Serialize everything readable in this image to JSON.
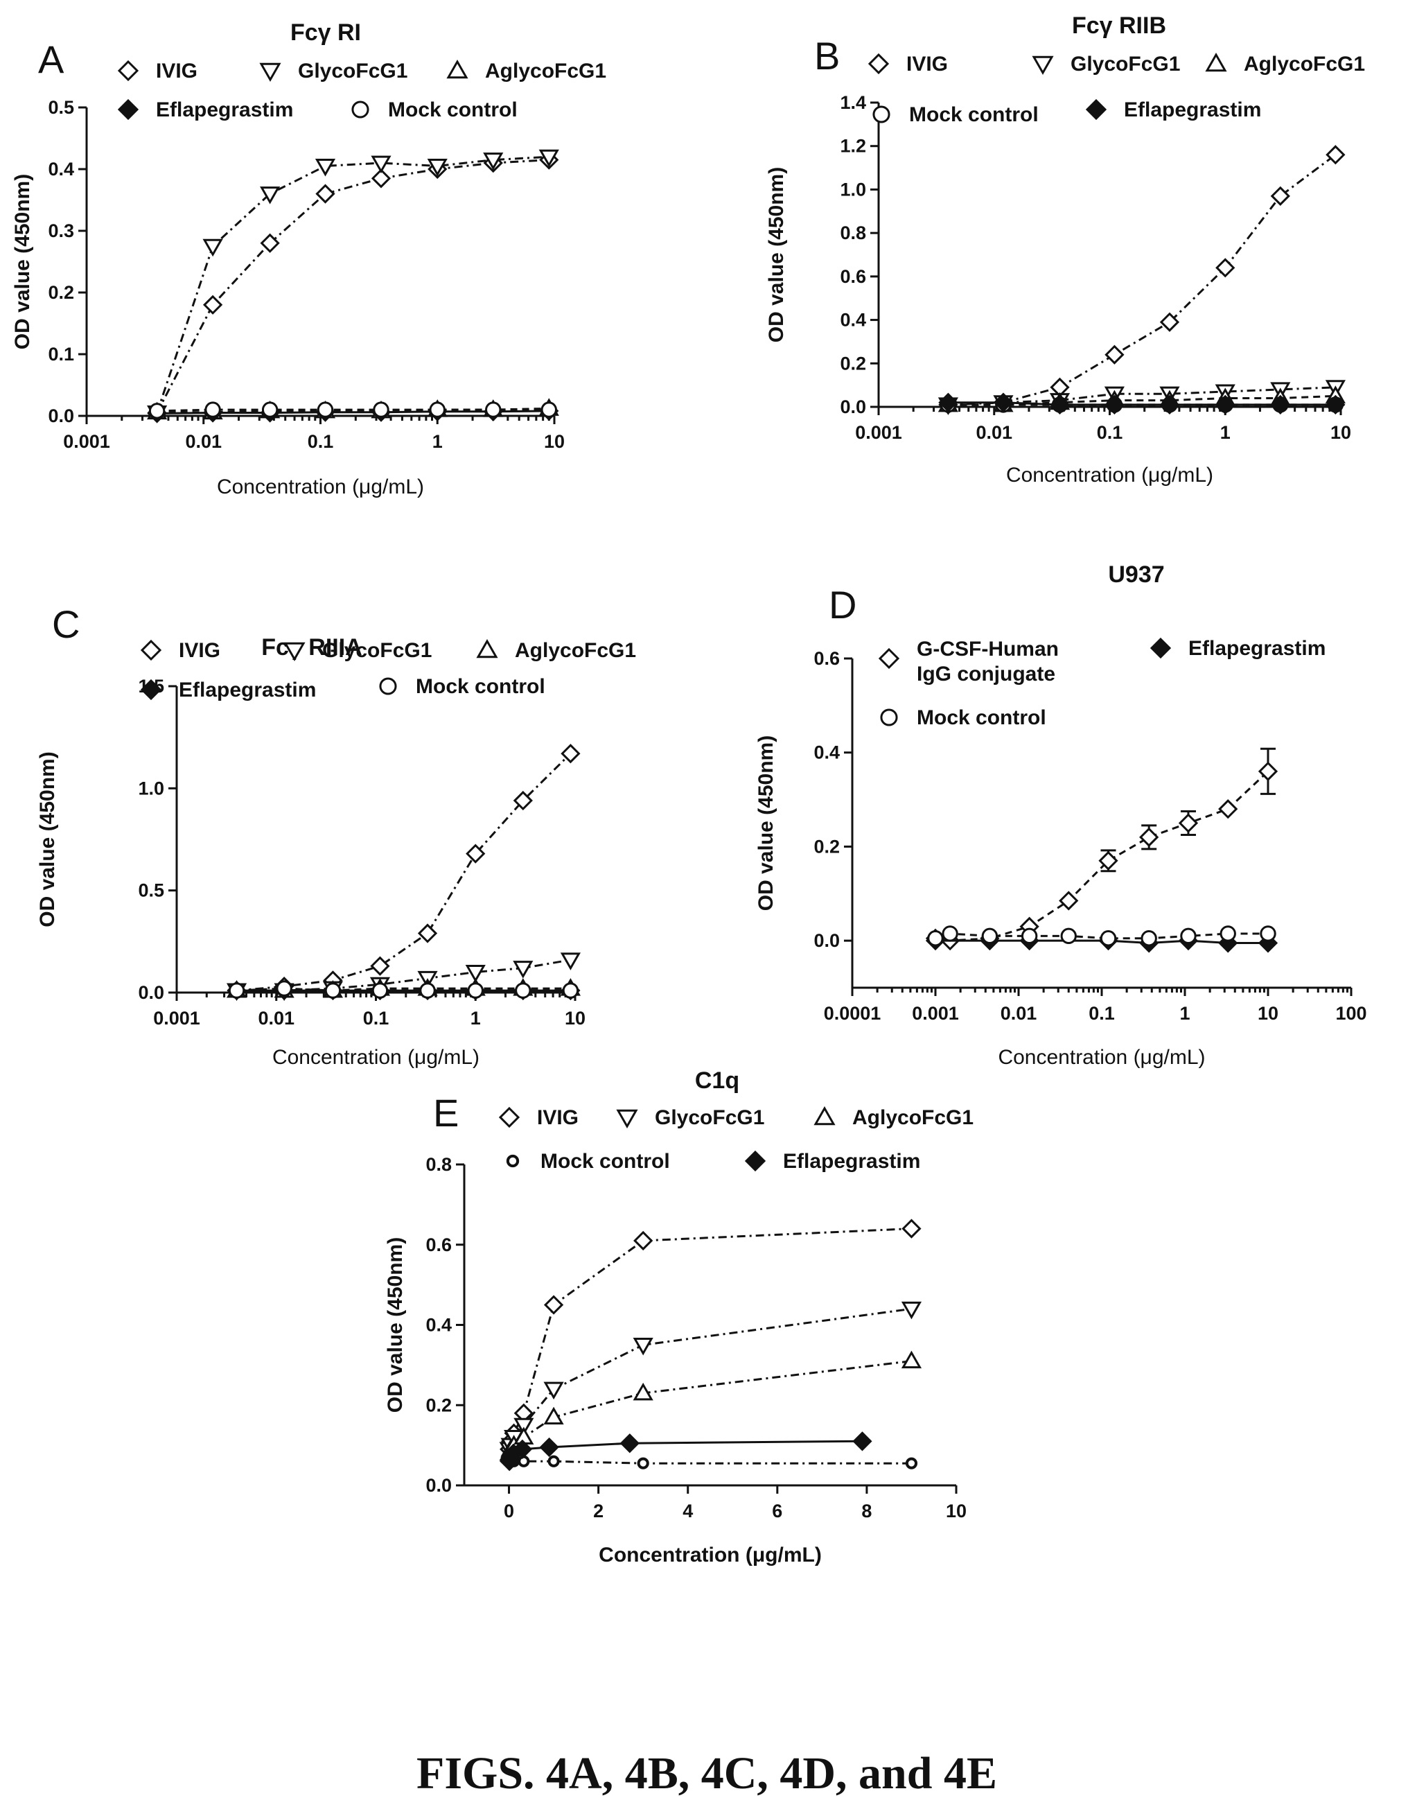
{
  "caption": "FIGS. 4A, 4B, 4C, 4D, and 4E",
  "chart_data": [
    {
      "panel": "A",
      "title": "Fcγ RI",
      "type": "line",
      "xscale": "log",
      "xlim": [
        0.001,
        10
      ],
      "ylim": [
        0,
        0.5
      ],
      "xticks": [
        0.001,
        0.01,
        0.1,
        1,
        10
      ],
      "xticklabels": [
        "0.001",
        "0.01",
        "0.1",
        "1",
        "10"
      ],
      "yticks": [
        0,
        0.1,
        0.2,
        0.3,
        0.4,
        0.5
      ],
      "yticklabels": [
        "0.0",
        "0.1",
        "0.2",
        "0.3",
        "0.4",
        "0.5"
      ],
      "xlabel": "Concentration  (μg/mL)",
      "ylabel": "OD value (450nm)",
      "legend_order": [
        "IVIG",
        "GlycoFcG1",
        "AglycoFcG1",
        "Eflapegrastim",
        "Mock control"
      ],
      "series": [
        {
          "name": "IVIG",
          "marker": "diamond-open",
          "line": "dashdot",
          "x": [
            0.004,
            0.012,
            0.037,
            0.11,
            0.33,
            1,
            3,
            9
          ],
          "y": [
            0.005,
            0.18,
            0.28,
            0.36,
            0.385,
            0.4,
            0.41,
            0.415
          ]
        },
        {
          "name": "GlycoFcG1",
          "marker": "tri-down-open",
          "line": "dashdot",
          "x": [
            0.004,
            0.012,
            0.037,
            0.11,
            0.33,
            1,
            3,
            9
          ],
          "y": [
            0.005,
            0.275,
            0.36,
            0.405,
            0.41,
            0.405,
            0.415,
            0.42
          ]
        },
        {
          "name": "AglycoFcG1",
          "marker": "tri-up-open",
          "line": "dashed",
          "x": [
            0.004,
            0.012,
            0.037,
            0.11,
            0.33,
            1,
            3,
            9
          ],
          "y": [
            0.006,
            0.006,
            0.008,
            0.008,
            0.008,
            0.01,
            0.01,
            0.012
          ]
        },
        {
          "name": "Eflapegrastim",
          "marker": "diamond-filled",
          "line": "solid",
          "x": [
            0.004,
            0.012,
            0.037,
            0.11,
            0.33,
            1,
            3,
            9
          ],
          "y": [
            0.004,
            0.005,
            0.005,
            0.006,
            0.006,
            0.007,
            0.007,
            0.008
          ]
        },
        {
          "name": "Mock control",
          "marker": "circle-open",
          "line": "dashed",
          "x": [
            0.004,
            0.012,
            0.037,
            0.11,
            0.33,
            1,
            3,
            9
          ],
          "y": [
            0.008,
            0.01,
            0.01,
            0.01,
            0.01,
            0.01,
            0.01,
            0.01
          ]
        }
      ]
    },
    {
      "panel": "B",
      "title": "Fcγ RIIB",
      "type": "line",
      "xscale": "log",
      "xlim": [
        0.001,
        10
      ],
      "ylim": [
        0,
        1.4
      ],
      "xticks": [
        0.001,
        0.01,
        0.1,
        1,
        10
      ],
      "xticklabels": [
        "0.001",
        "0.01",
        "0.1",
        "1",
        "10"
      ],
      "yticks": [
        0,
        0.2,
        0.4,
        0.6,
        0.8,
        1.0,
        1.2,
        1.4
      ],
      "yticklabels": [
        "0.0",
        "0.2",
        "0.4",
        "0.6",
        "0.8",
        "1.0",
        "1.2",
        "1.4"
      ],
      "xlabel": "Concentration  (μg/mL)",
      "ylabel": "OD value (450nm)",
      "legend_order": [
        "IVIG",
        "GlycoFcG1",
        "AglycoFcG1",
        "Mock control",
        "Eflapegrastim"
      ],
      "series": [
        {
          "name": "IVIG",
          "marker": "diamond-open",
          "line": "dashdot",
          "x": [
            0.004,
            0.012,
            0.037,
            0.11,
            0.33,
            1,
            3,
            9
          ],
          "y": [
            0.01,
            0.02,
            0.09,
            0.24,
            0.39,
            0.64,
            0.97,
            1.16
          ]
        },
        {
          "name": "GlycoFcG1",
          "marker": "tri-down-open",
          "line": "dashdot",
          "x": [
            0.004,
            0.012,
            0.037,
            0.11,
            0.33,
            1,
            3,
            9
          ],
          "y": [
            0.01,
            0.02,
            0.03,
            0.06,
            0.06,
            0.07,
            0.08,
            0.09
          ]
        },
        {
          "name": "AglycoFcG1",
          "marker": "tri-up-open",
          "line": "dashed",
          "x": [
            0.004,
            0.012,
            0.037,
            0.11,
            0.33,
            1,
            3,
            9
          ],
          "y": [
            0.01,
            0.01,
            0.02,
            0.03,
            0.03,
            0.04,
            0.04,
            0.05
          ]
        },
        {
          "name": "Mock control",
          "marker": "circle-open",
          "line": "dashed",
          "x": [
            0.004,
            0.012,
            0.037,
            0.11,
            0.33,
            1,
            3,
            9
          ],
          "y": [
            0.01,
            0.01,
            0.01,
            0.01,
            0.01,
            0.01,
            0.01,
            0.01
          ]
        },
        {
          "name": "Eflapegrastim",
          "marker": "diamond-filled",
          "line": "solid",
          "x": [
            0.004,
            0.012,
            0.037,
            0.11,
            0.33,
            1,
            3,
            9
          ],
          "y": [
            0.02,
            0.02,
            0.01,
            0.01,
            0.01,
            0.01,
            0.01,
            0.01
          ]
        }
      ]
    },
    {
      "panel": "C",
      "title": "Fcγ RIIIA",
      "type": "line",
      "xscale": "log",
      "xlim": [
        0.001,
        10
      ],
      "ylim": [
        0,
        1.5
      ],
      "xticks": [
        0.001,
        0.01,
        0.1,
        1,
        10
      ],
      "xticklabels": [
        "0.001",
        "0.01",
        "0.1",
        "1",
        "10"
      ],
      "yticks": [
        0,
        0.5,
        1.0,
        1.5
      ],
      "yticklabels": [
        "0.0",
        "0.5",
        "1.0",
        "1.5"
      ],
      "xlabel": "Concentration  (μg/mL)",
      "ylabel": "OD value (450nm)",
      "legend_order": [
        "IVIG",
        "GlycoFcG1",
        "AglycoFcG1",
        "Eflapegrastim",
        "Mock control"
      ],
      "series": [
        {
          "name": "IVIG",
          "marker": "diamond-open",
          "line": "dashdot",
          "x": [
            0.004,
            0.012,
            0.037,
            0.11,
            0.33,
            1,
            3,
            9
          ],
          "y": [
            0.01,
            0.03,
            0.06,
            0.13,
            0.29,
            0.68,
            0.94,
            1.17
          ]
        },
        {
          "name": "GlycoFcG1",
          "marker": "tri-down-open",
          "line": "dashdot",
          "x": [
            0.004,
            0.012,
            0.037,
            0.11,
            0.33,
            1,
            3,
            9
          ],
          "y": [
            0.01,
            0.01,
            0.02,
            0.04,
            0.07,
            0.1,
            0.12,
            0.16
          ]
        },
        {
          "name": "AglycoFcG1",
          "marker": "tri-up-open",
          "line": "dashed",
          "x": [
            0.004,
            0.012,
            0.037,
            0.11,
            0.33,
            1,
            3,
            9
          ],
          "y": [
            0.01,
            0.01,
            0.01,
            0.02,
            0.02,
            0.02,
            0.02,
            0.02
          ]
        },
        {
          "name": "Eflapegrastim",
          "marker": "diamond-filled",
          "line": "solid",
          "x": [
            0.004,
            0.012,
            0.037,
            0.11,
            0.33,
            1,
            3,
            9
          ],
          "y": [
            0.01,
            0.01,
            0.01,
            0.01,
            0.01,
            0.01,
            0.01,
            0.01
          ]
        },
        {
          "name": "Mock control",
          "marker": "circle-open",
          "line": "dashed",
          "x": [
            0.004,
            0.012,
            0.037,
            0.11,
            0.33,
            1,
            3,
            9
          ],
          "y": [
            0.01,
            0.02,
            0.01,
            0.01,
            0.01,
            0.01,
            0.01,
            0.01
          ]
        }
      ]
    },
    {
      "panel": "D",
      "title": "U937",
      "type": "line",
      "xscale": "log",
      "xlim": [
        0.0001,
        100
      ],
      "ylim": [
        -0.1,
        0.6
      ],
      "xticks": [
        0.0001,
        0.001,
        0.01,
        0.1,
        1,
        10,
        100
      ],
      "xticklabels": [
        "0.0001",
        "0.001",
        "0.01",
        "0.1",
        "1",
        "10",
        "100"
      ],
      "yticks": [
        0,
        0.2,
        0.4,
        0.6
      ],
      "yticklabels": [
        "0.0",
        "0.2",
        "0.4",
        "0.6"
      ],
      "xlabel": "Concentration  (μg/mL)",
      "ylabel": "OD value (450nm)",
      "legend_order": [
        "G-CSF-Human IgG conjugate",
        "Eflapegrastim",
        "Mock control"
      ],
      "series": [
        {
          "name": "G-CSF-Human IgG conjugate",
          "marker": "diamond-open",
          "line": "dashed",
          "x": [
            0.001,
            0.0015,
            0.0045,
            0.0135,
            0.04,
            0.12,
            0.37,
            1.1,
            3.3,
            10
          ],
          "y": [
            0.005,
            0.0,
            0.005,
            0.03,
            0.085,
            0.17,
            0.22,
            0.25,
            0.28,
            0.36
          ],
          "err": [
            0,
            0,
            0,
            0,
            0,
            0.022,
            0.025,
            0.025,
            0,
            0.048
          ]
        },
        {
          "name": "Eflapegrastim",
          "marker": "diamond-filled",
          "line": "solid",
          "x": [
            0.001,
            0.0045,
            0.0135,
            0.12,
            0.37,
            1.1,
            3.3,
            10
          ],
          "y": [
            0.0,
            0.0,
            0.0,
            0.0,
            -0.005,
            0.0,
            -0.005,
            -0.005
          ]
        },
        {
          "name": "Mock control",
          "marker": "circle-open",
          "line": "dashed",
          "x": [
            0.001,
            0.0015,
            0.0045,
            0.0135,
            0.04,
            0.12,
            0.37,
            1.1,
            3.3,
            10
          ],
          "y": [
            0.005,
            0.015,
            0.01,
            0.01,
            0.01,
            0.005,
            0.005,
            0.01,
            0.015,
            0.015
          ]
        }
      ]
    },
    {
      "panel": "E",
      "title": "C1q",
      "type": "line",
      "xscale": "linear",
      "xlim": [
        -1,
        10
      ],
      "ylim": [
        0,
        0.8
      ],
      "xticks": [
        0,
        2,
        4,
        6,
        8,
        10
      ],
      "xticklabels": [
        "0",
        "2",
        "4",
        "6",
        "8",
        "10"
      ],
      "yticks": [
        0,
        0.2,
        0.4,
        0.6,
        0.8
      ],
      "yticklabels": [
        "0.0",
        "0.2",
        "0.4",
        "0.6",
        "0.8"
      ],
      "xlabel": "Concentration  (μg/mL)",
      "ylabel": "OD value (450nm)",
      "legend_order": [
        "IVIG",
        "GlycoFcG1",
        "AglycoFcG1",
        "Mock control",
        "Eflapegrastim"
      ],
      "series": [
        {
          "name": "IVIG",
          "marker": "diamond-open",
          "line": "dashdot",
          "x": [
            0.01,
            0.04,
            0.11,
            0.33,
            1,
            3,
            9
          ],
          "y": [
            0.09,
            0.11,
            0.13,
            0.18,
            0.45,
            0.61,
            0.64
          ]
        },
        {
          "name": "GlycoFcG1",
          "marker": "tri-down-open",
          "line": "dashdot",
          "x": [
            0.01,
            0.04,
            0.11,
            0.33,
            1,
            3,
            9
          ],
          "y": [
            0.09,
            0.1,
            0.12,
            0.15,
            0.24,
            0.35,
            0.44
          ]
        },
        {
          "name": "AglycoFcG1",
          "marker": "tri-up-open",
          "line": "dashdot",
          "x": [
            0.01,
            0.04,
            0.11,
            0.33,
            1,
            3,
            9
          ],
          "y": [
            0.08,
            0.09,
            0.1,
            0.12,
            0.17,
            0.23,
            0.31
          ]
        },
        {
          "name": "Mock control",
          "marker": "circle-small",
          "line": "dashdot",
          "x": [
            0.01,
            0.04,
            0.11,
            0.33,
            1,
            3,
            9
          ],
          "y": [
            0.06,
            0.06,
            0.06,
            0.06,
            0.06,
            0.055,
            0.055
          ]
        },
        {
          "name": "Eflapegrastim",
          "marker": "diamond-filled",
          "line": "solid",
          "x": [
            0.01,
            0.03,
            0.1,
            0.3,
            0.9,
            2.7,
            7.9
          ],
          "y": [
            0.06,
            0.07,
            0.08,
            0.09,
            0.095,
            0.105,
            0.11
          ]
        }
      ]
    }
  ]
}
